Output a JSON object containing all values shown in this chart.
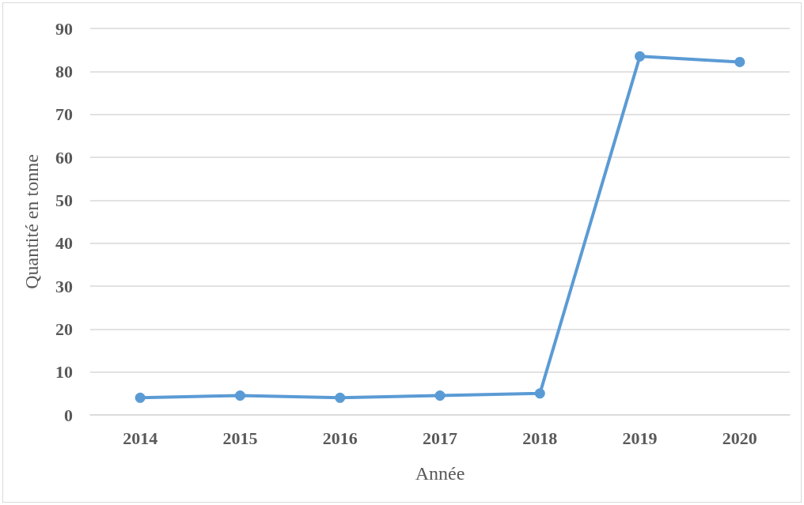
{
  "chart_data": {
    "type": "line",
    "xlabel": "Année",
    "ylabel": "Quantité en tonne",
    "categories": [
      "2014",
      "2015",
      "2016",
      "2017",
      "2018",
      "2019",
      "2020"
    ],
    "series": [
      {
        "color": "#5b9bd5",
        "values": [
          4,
          4.5,
          4,
          4.5,
          5,
          83.5,
          82.2
        ]
      }
    ],
    "ylim": [
      0,
      90
    ],
    "yticks": [
      0,
      10,
      20,
      30,
      40,
      50,
      60,
      70,
      80,
      90
    ],
    "grid": "y",
    "marker": "circle",
    "line_style": "solid"
  }
}
